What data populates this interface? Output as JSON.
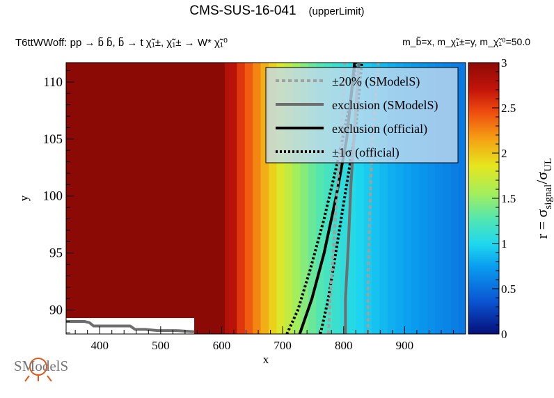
{
  "title": {
    "main": "CMS-SUS-16-041",
    "sub": "(upperLimit)"
  },
  "process_label": "T6ttWWoff: pp → b̃ b̃, b̃ → t χ̃₁±, χ̃₁± → W* χ̃₁⁰",
  "mass_label": "m_b̃=x, m_χ̃₁±=y, m_χ̃₁⁰=50.0",
  "logo_text": "SModelS",
  "chart_data": {
    "type": "heatmap",
    "title": "CMS-SUS-16-041 (upperLimit)",
    "xlabel": "x",
    "ylabel": "y",
    "zlabel": "r = σ_signal/σ_UL",
    "zlabel_parts": {
      "r_eq": "r = σ",
      "signal": "signal",
      "slash": "/σ",
      "ul": "UL"
    },
    "xlim": [
      345,
      1000
    ],
    "ylim": [
      87.9,
      111.7
    ],
    "zlim": [
      0,
      3
    ],
    "x_ticks": [
      400,
      500,
      600,
      700,
      800,
      900
    ],
    "y_ticks": [
      90,
      95,
      100,
      105,
      110
    ],
    "z_ticks": [
      0,
      0.5,
      1,
      1.5,
      2,
      2.5,
      3
    ],
    "heatmap_columns": {
      "x_edges": [
        345,
        612,
        625,
        638,
        651,
        664,
        677,
        690,
        703,
        716,
        729,
        742,
        755,
        768,
        781,
        794,
        807,
        820,
        833,
        846,
        859,
        872,
        885,
        898,
        911,
        924,
        937,
        950,
        963,
        976,
        989,
        1000
      ],
      "r_values": [
        3.0,
        2.75,
        2.55,
        2.4,
        2.25,
        2.1,
        1.95,
        1.8,
        1.68,
        1.55,
        1.45,
        1.35,
        1.27,
        1.2,
        1.14,
        1.08,
        1.03,
        0.98,
        0.94,
        0.9,
        0.86,
        0.82,
        0.79,
        0.76,
        0.73,
        0.7,
        0.67,
        0.64,
        0.61,
        0.58,
        0.55
      ],
      "dark_left_edge_x": 605
    },
    "no_data_region": {
      "x": [
        345,
        555
      ],
      "y": [
        87.9,
        89.3
      ]
    },
    "series": [
      {
        "name": "exclusion (official)",
        "style": "solid",
        "color": "#000000",
        "points": [
          [
            728,
            87.9
          ],
          [
            748,
            91.0
          ],
          [
            768,
            95.0
          ],
          [
            788,
            100.0
          ],
          [
            805,
            105.0
          ],
          [
            818,
            111.7
          ]
        ]
      },
      {
        "name": "±1σ (official)",
        "style": "dotted",
        "color": "#000000",
        "points": [
          [
            707,
            87.9
          ],
          [
            725,
            90.0
          ],
          [
            745,
            93.5
          ],
          [
            768,
            98.0
          ],
          [
            790,
            103.0
          ],
          [
            810,
            108.0
          ],
          [
            820,
            111.7
          ]
        ]
      },
      {
        "name": "±1σ (official)",
        "style": "dotted",
        "color": "#000000",
        "points": [
          [
            762,
            87.9
          ],
          [
            775,
            91.0
          ],
          [
            790,
            96.0
          ],
          [
            805,
            101.0
          ],
          [
            820,
            106.0
          ],
          [
            830,
            111.7
          ]
        ]
      },
      {
        "name": "exclusion (SModelS)",
        "style": "solid",
        "color": "#6e6e6e",
        "points": [
          [
            803,
            87.9
          ],
          [
            803,
            91.0
          ],
          [
            808,
            96.0
          ],
          [
            812,
            101.0
          ],
          [
            818,
            106.0
          ],
          [
            825,
            111.7
          ]
        ]
      },
      {
        "name": "±20% (SModelS)",
        "style": "dashed",
        "color": "#a0a0a0",
        "points": [
          [
            775,
            87.9
          ],
          [
            778,
            91.0
          ],
          [
            784,
            96.0
          ],
          [
            790,
            101.0
          ],
          [
            797,
            106.0
          ],
          [
            802,
            111.7
          ]
        ]
      },
      {
        "name": "±20% (SModelS)",
        "style": "dashed",
        "color": "#a0a0a0",
        "points": [
          [
            840,
            87.9
          ],
          [
            840,
            92.0
          ],
          [
            842,
            97.0
          ],
          [
            845,
            102.0
          ],
          [
            850,
            107.0
          ],
          [
            857,
            111.7
          ]
        ]
      },
      {
        "name": "exclusion (SModelS)",
        "style": "solid",
        "color": "#6e6e6e",
        "points": [
          [
            345,
            89.0
          ],
          [
            375,
            89.0
          ],
          [
            383,
            88.9
          ],
          [
            390,
            88.6
          ],
          [
            408,
            88.6
          ],
          [
            450,
            88.6
          ],
          [
            458,
            88.3
          ],
          [
            475,
            88.3
          ],
          [
            495,
            88.2
          ],
          [
            525,
            88.2
          ],
          [
            555,
            88.1
          ]
        ]
      }
    ],
    "legend": {
      "placement": "top-right",
      "entries": [
        {
          "label": "±20% (SModelS)",
          "style": "dashed",
          "color": "#a0a0a0"
        },
        {
          "label": "exclusion (SModelS)",
          "style": "solid",
          "color": "#6e6e6e"
        },
        {
          "label": "exclusion (official)",
          "style": "solid",
          "color": "#000000"
        },
        {
          "label": "±1σ (official)",
          "style": "dotted",
          "color": "#000000"
        }
      ]
    }
  }
}
